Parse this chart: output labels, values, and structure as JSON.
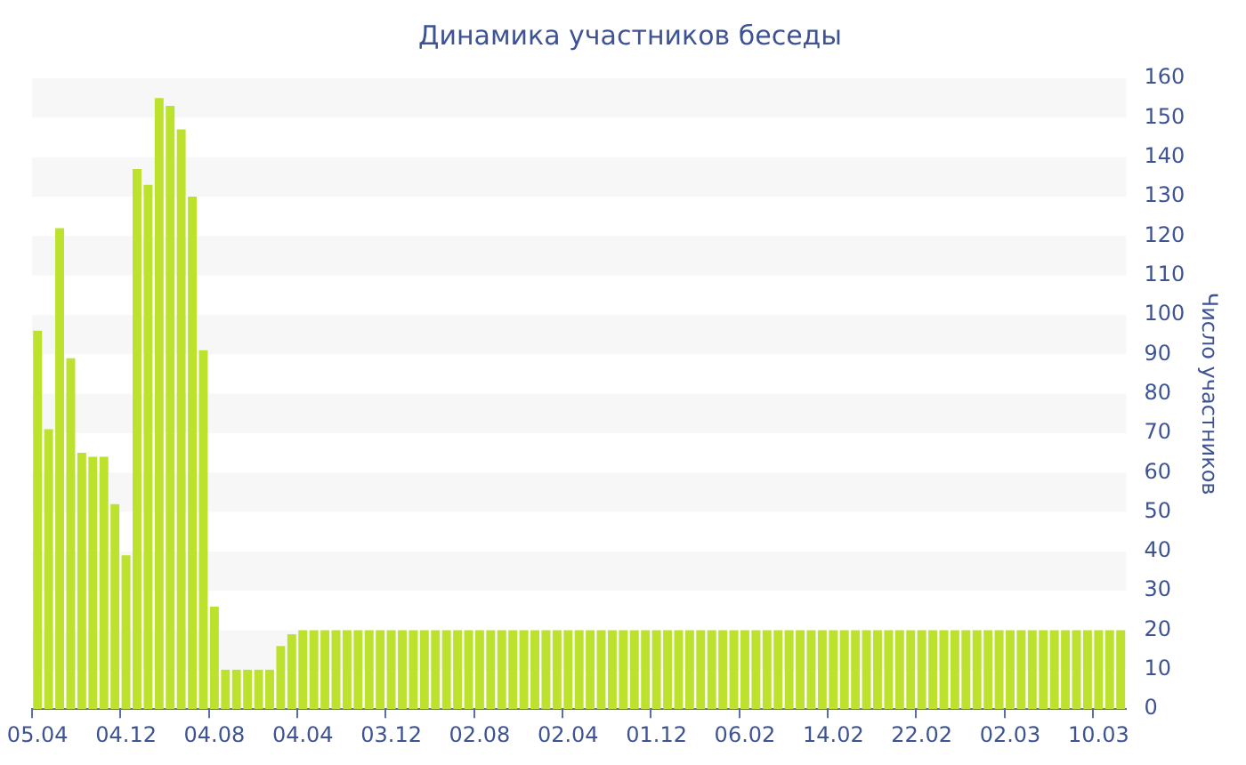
{
  "chart_data": {
    "type": "bar",
    "title": "Динамика участников беседы",
    "ylabel": "Число участников",
    "categories": [
      "05.04",
      null,
      null,
      null,
      null,
      null,
      null,
      null,
      "04.12",
      null,
      null,
      null,
      null,
      null,
      null,
      null,
      "04.08",
      null,
      null,
      null,
      null,
      null,
      null,
      null,
      "04.04",
      null,
      null,
      null,
      null,
      null,
      null,
      null,
      "03.12",
      null,
      null,
      null,
      null,
      null,
      null,
      null,
      "02.08",
      null,
      null,
      null,
      null,
      null,
      null,
      null,
      "02.04",
      null,
      null,
      null,
      null,
      null,
      null,
      null,
      "01.12",
      null,
      null,
      null,
      null,
      null,
      null,
      null,
      "06.02",
      null,
      null,
      null,
      null,
      null,
      null,
      null,
      "14.02",
      null,
      null,
      null,
      null,
      null,
      null,
      null,
      "22.02",
      null,
      null,
      null,
      null,
      null,
      null,
      null,
      "02.03",
      null,
      null,
      null,
      null,
      null,
      null,
      null,
      "10.03",
      null,
      null
    ],
    "values": [
      96,
      71,
      122,
      89,
      65,
      64,
      64,
      52,
      39,
      137,
      133,
      155,
      153,
      147,
      130,
      91,
      26,
      10,
      10,
      10,
      10,
      10,
      16,
      19,
      20,
      20,
      20,
      20,
      20,
      20,
      20,
      20,
      20,
      20,
      20,
      20,
      20,
      20,
      20,
      20,
      20,
      20,
      20,
      20,
      20,
      20,
      20,
      20,
      20,
      20,
      20,
      20,
      20,
      20,
      20,
      20,
      20,
      20,
      20,
      20,
      20,
      20,
      20,
      20,
      20,
      20,
      20,
      20,
      20,
      20,
      20,
      20,
      20,
      20,
      20,
      20,
      20,
      20,
      20,
      20,
      20,
      20,
      20,
      20,
      20,
      20,
      20,
      20,
      20,
      20,
      20,
      20,
      20,
      20,
      20,
      20,
      20,
      20,
      20
    ],
    "color": "#bde22e",
    "ylim": [
      0,
      160
    ],
    "yticks": [
      0,
      10,
      20,
      30,
      40,
      50,
      60,
      70,
      80,
      90,
      100,
      110,
      120,
      130,
      140,
      150,
      160
    ],
    "legend": false,
    "bands": [
      {
        "axis": "y",
        "from": 10,
        "to": 20,
        "color": "#f7f7f7"
      },
      {
        "axis": "y",
        "from": 30,
        "to": 40,
        "color": "#f7f7f7"
      },
      {
        "axis": "y",
        "from": 50,
        "to": 60,
        "color": "#f7f7f7"
      },
      {
        "axis": "y",
        "from": 70,
        "to": 80,
        "color": "#f7f7f7"
      },
      {
        "axis": "y",
        "from": 90,
        "to": 100,
        "color": "#f7f7f7"
      },
      {
        "axis": "y",
        "from": 110,
        "to": 120,
        "color": "#f7f7f7"
      },
      {
        "axis": "y",
        "from": 130,
        "to": 140,
        "color": "#f7f7f7"
      },
      {
        "axis": "y",
        "from": 150,
        "to": 160,
        "color": "#f7f7f7"
      }
    ]
  }
}
